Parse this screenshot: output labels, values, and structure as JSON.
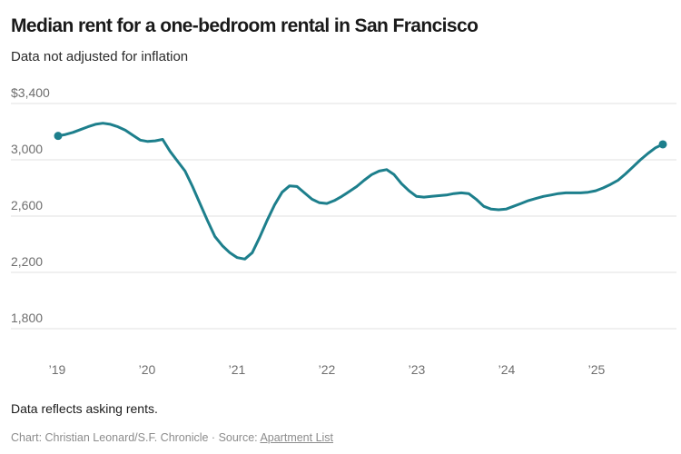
{
  "header": {
    "title": "Median rent for a one-bedroom rental in San Francisco",
    "subtitle": "Data not adjusted for inflation"
  },
  "chart_data": {
    "type": "line",
    "title": "Median rent for a one-bedroom rental in San Francisco",
    "subtitle": "Data not adjusted for inflation",
    "unit": "USD per month",
    "frequency": "monthly",
    "x_start": "2019-01",
    "x_end": "2025-10",
    "ylim": [
      1800,
      3400
    ],
    "grid": "horizontal",
    "legend": "none",
    "y_ticks": [
      {
        "label": "$3,400",
        "value": 3400
      },
      {
        "label": "3,000",
        "value": 3000
      },
      {
        "label": "2,600",
        "value": 2600
      },
      {
        "label": "2,200",
        "value": 2200
      },
      {
        "label": "1,800",
        "value": 1800
      }
    ],
    "x_ticks": [
      {
        "label": "’19",
        "value": 2019
      },
      {
        "label": "’20",
        "value": 2020
      },
      {
        "label": "’21",
        "value": 2021
      },
      {
        "label": "’22",
        "value": 2022
      },
      {
        "label": "’23",
        "value": 2023
      },
      {
        "label": "’24",
        "value": 2024
      },
      {
        "label": "’25",
        "value": 2025
      }
    ],
    "series": [
      {
        "name": "Median one-bedroom rent",
        "color": "#1d7f8c",
        "endpoint_dots": true,
        "values": [
          3170,
          3180,
          3195,
          3215,
          3235,
          3252,
          3260,
          3252,
          3235,
          3210,
          3175,
          3140,
          3130,
          3135,
          3145,
          3060,
          2990,
          2920,
          2810,
          2690,
          2570,
          2455,
          2390,
          2340,
          2305,
          2295,
          2340,
          2450,
          2570,
          2680,
          2770,
          2815,
          2810,
          2765,
          2720,
          2695,
          2690,
          2710,
          2740,
          2775,
          2810,
          2855,
          2895,
          2920,
          2930,
          2895,
          2830,
          2780,
          2740,
          2735,
          2740,
          2745,
          2750,
          2760,
          2765,
          2760,
          2720,
          2670,
          2650,
          2645,
          2650,
          2670,
          2690,
          2710,
          2725,
          2740,
          2750,
          2760,
          2765,
          2765,
          2765,
          2770,
          2780,
          2800,
          2825,
          2855,
          2900,
          2950,
          3000,
          3045,
          3085,
          3110
        ]
      }
    ],
    "colors": {
      "line": "#1d7f8c",
      "grid": "#e0e0e0",
      "axis_text": "#6e6e6e"
    }
  },
  "footer": {
    "note": "Data reflects asking rents.",
    "credit_prefix": "Chart: Christian Leonard/S.F. Chronicle · Source: ",
    "source_link": "Apartment List"
  }
}
